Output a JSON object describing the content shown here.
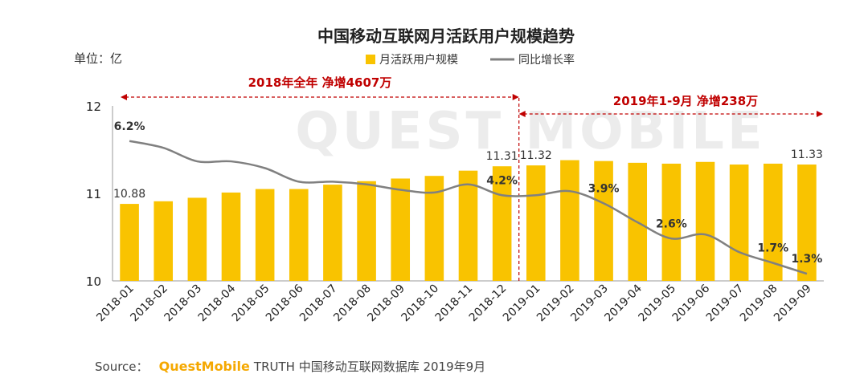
{
  "chart_data": {
    "type": "bar",
    "title": "中国移动互联网月活跃用户规模趋势",
    "unit_label": "单位：亿",
    "categories": [
      "2018-01",
      "2018-02",
      "2018-03",
      "2018-04",
      "2018-05",
      "2018-06",
      "2018-07",
      "2018-08",
      "2018-09",
      "2018-10",
      "2018-11",
      "2018-12",
      "2019-01",
      "2019-02",
      "2019-03",
      "2019-04",
      "2019-05",
      "2019-06",
      "2019-07",
      "2019-08",
      "2019-09"
    ],
    "series": [
      {
        "name": "月活跃用户规模",
        "type": "bar",
        "color": "#f9c300",
        "values": [
          10.88,
          10.91,
          10.95,
          11.01,
          11.05,
          11.05,
          11.1,
          11.14,
          11.17,
          11.2,
          11.26,
          11.31,
          11.32,
          11.38,
          11.37,
          11.35,
          11.34,
          11.36,
          11.33,
          11.34,
          11.33
        ]
      },
      {
        "name": "同比增长率",
        "type": "line",
        "color": "#808080",
        "values": [
          6.2,
          5.95,
          5.45,
          5.45,
          5.2,
          4.7,
          4.7,
          4.6,
          4.4,
          4.3,
          4.6,
          4.2,
          4.2,
          4.35,
          3.9,
          3.2,
          2.6,
          2.75,
          2.1,
          1.7,
          1.3
        ]
      }
    ],
    "bar_labels": [
      {
        "index": 0,
        "text": "10.88"
      },
      {
        "index": 11,
        "text": "11.31"
      },
      {
        "index": 12,
        "text": "11.32"
      },
      {
        "index": 20,
        "text": "11.33"
      }
    ],
    "line_labels": [
      {
        "index": 0,
        "text": "6.2%"
      },
      {
        "index": 11,
        "text": "4.2%"
      },
      {
        "index": 14,
        "text": "3.9%"
      },
      {
        "index": 16,
        "text": "2.6%"
      },
      {
        "index": 19,
        "text": "1.7%"
      },
      {
        "index": 20,
        "text": "1.3%"
      }
    ],
    "y_ticks": [
      "10",
      "11",
      "12"
    ],
    "ylim": [
      10,
      12
    ],
    "line_range": [
      0,
      12
    ],
    "annotations": [
      {
        "text": "2018年全年  净增4607万",
        "from": 0,
        "to": 11
      },
      {
        "text": "2019年1-9月  净增238万",
        "from": 12,
        "to": 20
      }
    ],
    "legend_position": "top-right",
    "grid": false
  },
  "watermark": "QUEST MOBILE",
  "source": {
    "prefix": "Source：",
    "brand": "QuestMobile",
    "rest": "TRUTH 中国移动互联网数据库 2019年9月"
  }
}
